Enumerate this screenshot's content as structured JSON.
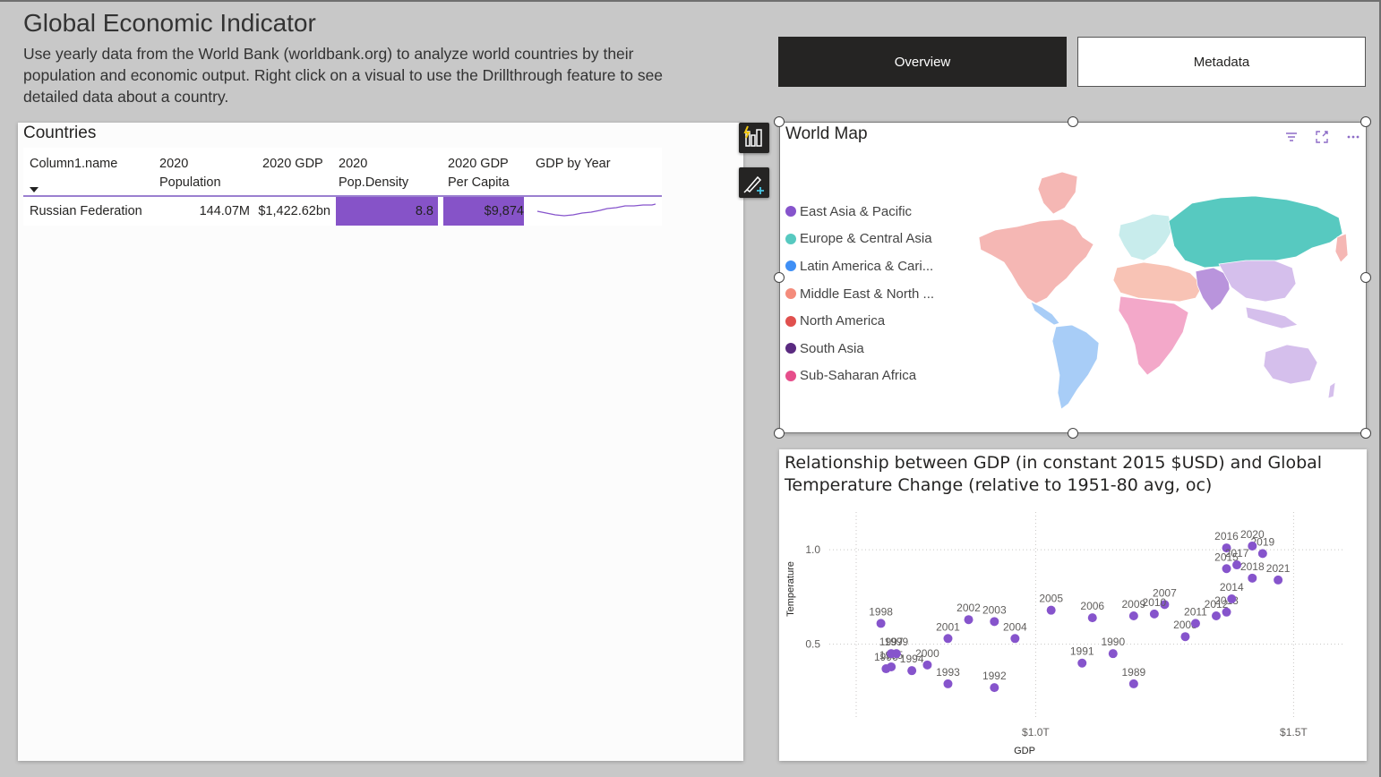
{
  "header": {
    "title": "Global Economic Indicator",
    "description": "Use yearly data from the World Bank (worldbank.org) to analyze world countries by their population and economic output. Right click on a visual to use the Drillthrough feature to  see detailed data about a country."
  },
  "nav": {
    "overview_label": "Overview",
    "metadata_label": "Metadata"
  },
  "countries": {
    "title": "Countries",
    "columns": [
      "Column1.name",
      "2020 Population",
      "2020 GDP",
      "2020 Pop.Density",
      "2020 GDP Per Capita",
      "GDP by Year"
    ],
    "rows": [
      {
        "name": "Russian Federation",
        "population": "144.07M",
        "gdp": "$1,422.62bn",
        "pop_density": "8.8",
        "gdp_per_capita": "$9,874"
      }
    ]
  },
  "world_map": {
    "title": "World Map",
    "legend": [
      {
        "label": "East Asia & Pacific",
        "color": "#8654cc"
      },
      {
        "label": "Europe & Central Asia",
        "color": "#57c9c0"
      },
      {
        "label": "Latin America & Cari...",
        "color": "#3f8ff5"
      },
      {
        "label": "Middle East & North ...",
        "color": "#f48b7b"
      },
      {
        "label": "North America",
        "color": "#e0504e"
      },
      {
        "label": "South Asia",
        "color": "#5a2a80"
      },
      {
        "label": "Sub-Saharan Africa",
        "color": "#e64e8b"
      }
    ]
  },
  "chart_data": {
    "type": "scatter",
    "title": "Relationship between GDP (in constant 2015 $USD) and Global Temperature Change (relative to 1951-80 avg, oc)",
    "xlabel": "GDP",
    "ylabel": "Temperature",
    "x_ticks": [
      "$1.0T",
      "$1.5T"
    ],
    "y_ticks": [
      "0.5",
      "1.0"
    ],
    "x_unit": "trillion USD",
    "xlim": [
      0.6,
      1.6
    ],
    "ylim": [
      0.1,
      1.2
    ],
    "grid": true,
    "point_color": "#8654cc",
    "points": [
      {
        "label": "1989",
        "x": 1.19,
        "y": 0.29
      },
      {
        "label": "1990",
        "x": 1.15,
        "y": 0.45
      },
      {
        "label": "1991",
        "x": 1.09,
        "y": 0.4
      },
      {
        "label": "1992",
        "x": 0.92,
        "y": 0.27
      },
      {
        "label": "1993",
        "x": 0.83,
        "y": 0.29
      },
      {
        "label": "1994",
        "x": 0.76,
        "y": 0.36
      },
      {
        "label": "1995",
        "x": 0.72,
        "y": 0.38
      },
      {
        "label": "1996",
        "x": 0.71,
        "y": 0.37
      },
      {
        "label": "1997",
        "x": 0.72,
        "y": 0.45
      },
      {
        "label": "1998",
        "x": 0.7,
        "y": 0.61
      },
      {
        "label": "1999",
        "x": 0.73,
        "y": 0.45
      },
      {
        "label": "2000",
        "x": 0.79,
        "y": 0.39
      },
      {
        "label": "2001",
        "x": 0.83,
        "y": 0.53
      },
      {
        "label": "2002",
        "x": 0.87,
        "y": 0.63
      },
      {
        "label": "2003",
        "x": 0.92,
        "y": 0.62
      },
      {
        "label": "2004",
        "x": 0.96,
        "y": 0.53
      },
      {
        "label": "2005",
        "x": 1.03,
        "y": 0.68
      },
      {
        "label": "2006",
        "x": 1.11,
        "y": 0.64
      },
      {
        "label": "2007",
        "x": 1.25,
        "y": 0.71
      },
      {
        "label": "2008",
        "x": 1.29,
        "y": 0.54
      },
      {
        "label": "2009",
        "x": 1.19,
        "y": 0.65
      },
      {
        "label": "2010",
        "x": 1.23,
        "y": 0.66
      },
      {
        "label": "2011",
        "x": 1.31,
        "y": 0.61
      },
      {
        "label": "2012",
        "x": 1.35,
        "y": 0.65
      },
      {
        "label": "2013",
        "x": 1.37,
        "y": 0.67
      },
      {
        "label": "2014",
        "x": 1.38,
        "y": 0.74
      },
      {
        "label": "2015",
        "x": 1.37,
        "y": 0.9
      },
      {
        "label": "2016",
        "x": 1.37,
        "y": 1.01
      },
      {
        "label": "2017",
        "x": 1.39,
        "y": 0.92
      },
      {
        "label": "2018",
        "x": 1.42,
        "y": 0.85
      },
      {
        "label": "2019",
        "x": 1.44,
        "y": 0.98
      },
      {
        "label": "2020",
        "x": 1.42,
        "y": 1.02
      },
      {
        "label": "2021",
        "x": 1.47,
        "y": 0.84
      }
    ]
  }
}
